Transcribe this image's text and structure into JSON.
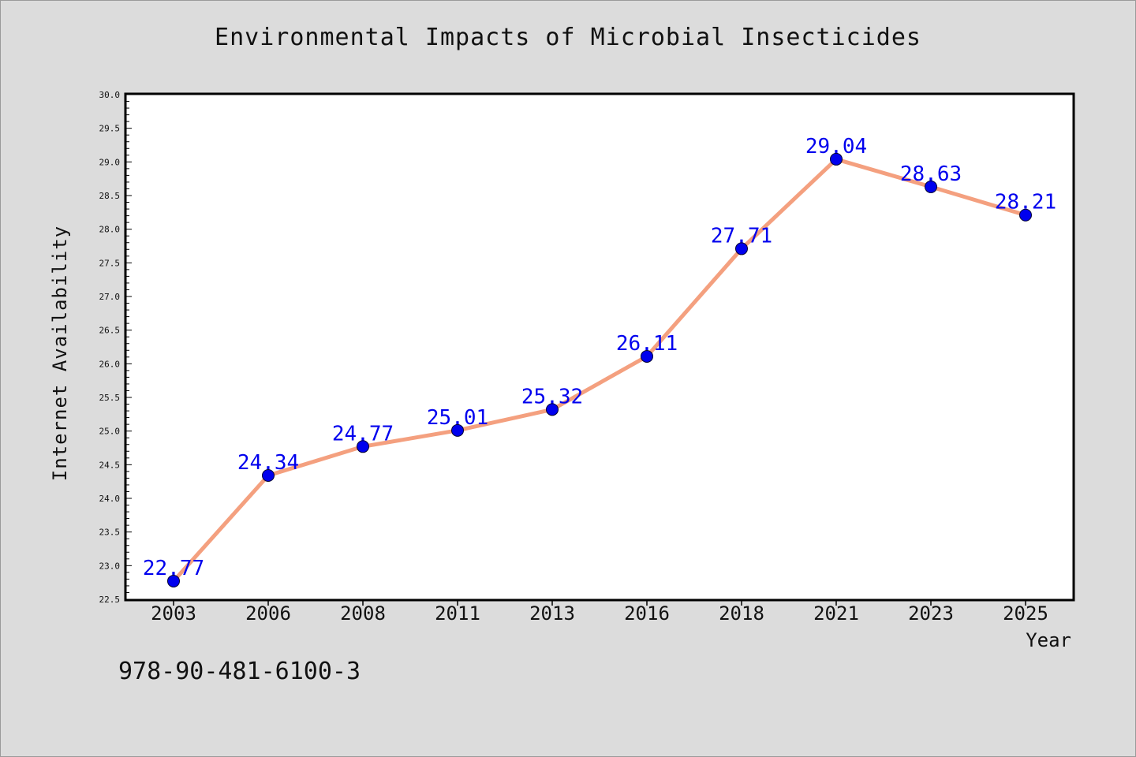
{
  "figure": {
    "title": "Environmental Impacts of Microbial Insecticides",
    "footer_text": "978-90-481-6100-3"
  },
  "colors": {
    "page_background": "#dcdcdc",
    "plot_background": "#ffffff",
    "line": "#f4a07f",
    "marker": "#0000ee",
    "data_label": "#0000ee",
    "text": "#111111"
  },
  "chart_data": {
    "type": "line",
    "title": "Environmental Impacts of Microbial Insecticides",
    "xlabel": "Year",
    "ylabel": "Internet Availability",
    "categories": [
      "2003",
      "2006",
      "2008",
      "2011",
      "2013",
      "2016",
      "2018",
      "2021",
      "2023",
      "2025"
    ],
    "series": [
      {
        "values": [
          22.77,
          24.34,
          24.77,
          25.01,
          25.32,
          26.11,
          27.71,
          29.04,
          28.63,
          28.21
        ],
        "color": "#f4a07f",
        "marker": "circle",
        "marker_color": "#0000ee"
      }
    ],
    "data_labels": [
      "22.77",
      "24.34",
      "24.77",
      "25.01",
      "25.32",
      "26.11",
      "27.71",
      "29.04",
      "28.63",
      "28.21"
    ],
    "ylim": [
      22.5,
      30.0
    ],
    "y_ticks": [
      "22.5",
      "23.0",
      "23.5",
      "24.0",
      "24.5",
      "25.0",
      "25.5",
      "26.0",
      "26.5",
      "27.0",
      "27.5",
      "28.0",
      "28.5",
      "29.0",
      "29.5",
      "30.0"
    ],
    "grid": false,
    "legend": "none"
  }
}
